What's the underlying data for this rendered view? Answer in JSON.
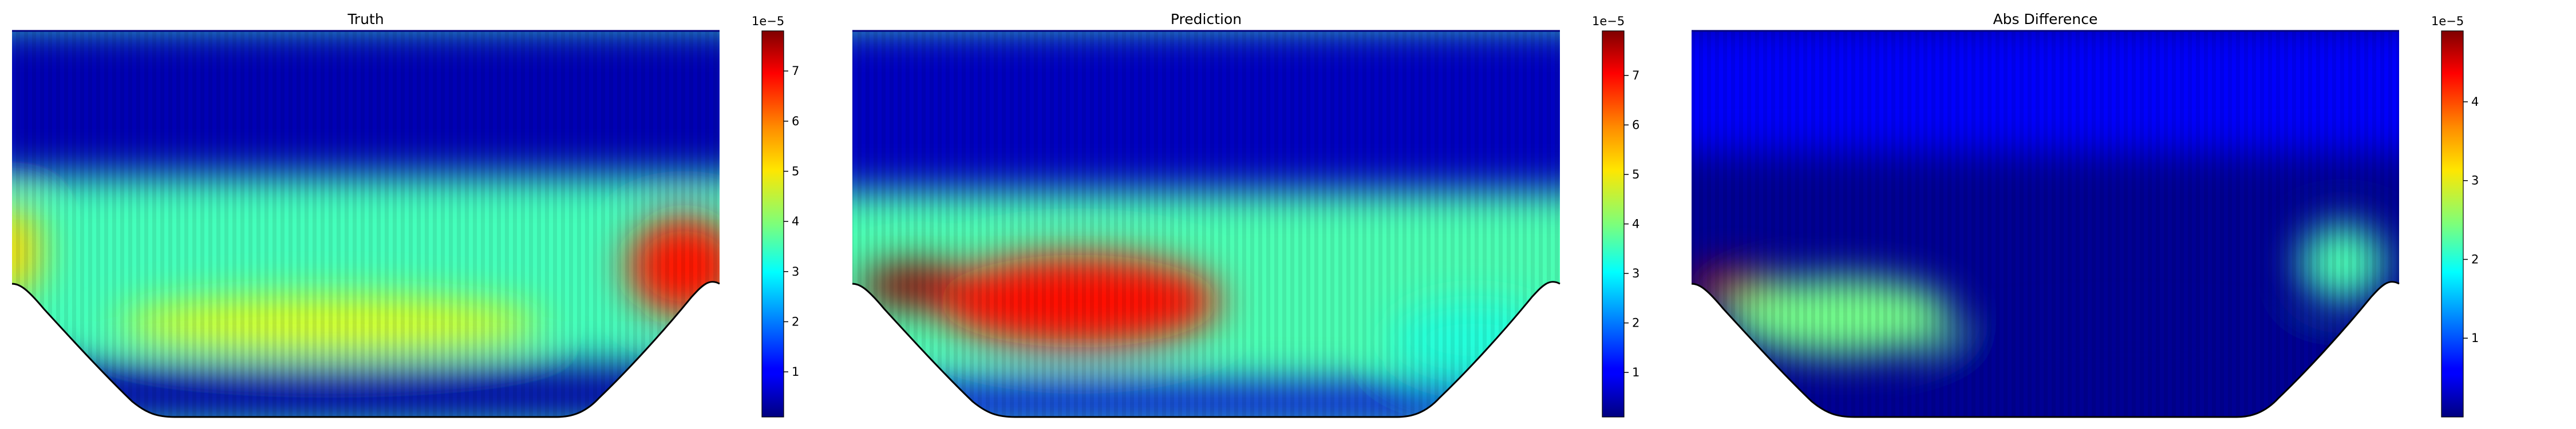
{
  "chart_data": [
    {
      "type": "heatmap",
      "title": "Truth",
      "colormap": "jet",
      "colorbar": {
        "ticks": [
          1,
          2,
          3,
          4,
          5,
          6,
          7
        ],
        "ticklabels": [
          "1",
          "2",
          "3",
          "4",
          "5",
          "6",
          "7"
        ],
        "range": [
          0.1,
          7.8
        ],
        "offset_label": "1e−5"
      },
      "field_features": [
        {
          "desc": "upper band",
          "value": 0.5
        },
        {
          "desc": "mid band",
          "value": 3.5
        },
        {
          "desc": "left edge hot spot",
          "value": 5.2
        },
        {
          "desc": "right hot spot",
          "value": 6.7
        },
        {
          "desc": "lower-middle band",
          "value": 4.7
        },
        {
          "desc": "near bottom wall",
          "value": 0.4
        }
      ]
    },
    {
      "type": "heatmap",
      "title": "Prediction",
      "colormap": "jet",
      "colorbar": {
        "ticks": [
          1,
          2,
          3,
          4,
          5,
          6,
          7
        ],
        "ticklabels": [
          "1",
          "2",
          "3",
          "4",
          "5",
          "6",
          "7"
        ],
        "range": [
          0.1,
          7.9
        ],
        "offset_label": "1e−5"
      },
      "field_features": [
        {
          "desc": "upper band",
          "value": 0.6
        },
        {
          "desc": "mid band",
          "value": 3.6
        },
        {
          "desc": "left hot spot",
          "value": 7.8
        },
        {
          "desc": "central hot region",
          "value": 6.8
        },
        {
          "desc": "right lower",
          "value": 3.3
        },
        {
          "desc": "near bottom wall",
          "value": 0.8
        }
      ]
    },
    {
      "type": "heatmap",
      "title": "Abs Difference",
      "colormap": "jet",
      "colorbar": {
        "ticks": [
          1,
          2,
          3,
          4
        ],
        "ticklabels": [
          "1",
          "2",
          "3",
          "4"
        ],
        "range": [
          0.0,
          4.9
        ],
        "offset_label": "1e−5"
      },
      "field_features": [
        {
          "desc": "upper band",
          "value": 0.6
        },
        {
          "desc": "dark band",
          "value": 0.1
        },
        {
          "desc": "left hot spot",
          "value": 4.7
        },
        {
          "desc": "lower-left lobe",
          "value": 2.4
        },
        {
          "desc": "right lobe",
          "value": 2.2
        },
        {
          "desc": "lower-middle minimum",
          "value": 0.1
        }
      ]
    }
  ]
}
